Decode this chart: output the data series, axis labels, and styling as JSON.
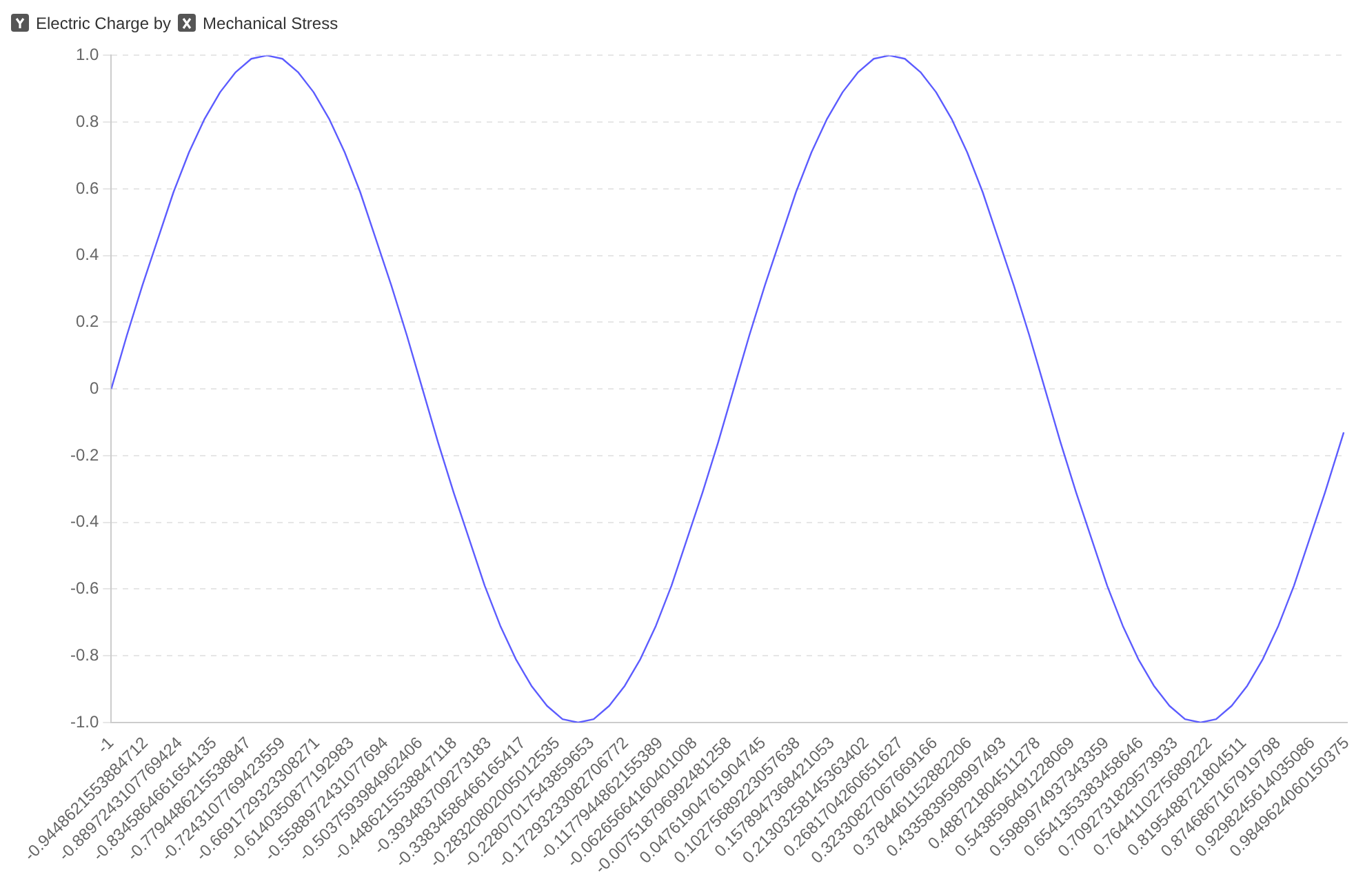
{
  "chart_data": {
    "type": "line",
    "ylabel": "Electric Charge by",
    "xlabel": "Mechanical Stress",
    "x": [
      -1,
      -0.975,
      -0.95,
      -0.925,
      -0.9,
      -0.875,
      -0.85,
      -0.825,
      -0.8,
      -0.775,
      -0.75,
      -0.725,
      -0.7,
      -0.675,
      -0.65,
      -0.625,
      -0.6,
      -0.575,
      -0.55,
      -0.525,
      -0.5,
      -0.475,
      -0.45,
      -0.425,
      -0.4,
      -0.375,
      -0.35,
      -0.325,
      -0.3,
      -0.275,
      -0.25,
      -0.225,
      -0.2,
      -0.175,
      -0.15,
      -0.125,
      -0.1,
      -0.075,
      -0.05,
      -0.025,
      0,
      0.025,
      0.05,
      0.075,
      0.1,
      0.125,
      0.15,
      0.175,
      0.2,
      0.225,
      0.25,
      0.275,
      0.3,
      0.325,
      0.35,
      0.375,
      0.4,
      0.425,
      0.45,
      0.475,
      0.5,
      0.525,
      0.55,
      0.575,
      0.6,
      0.625,
      0.65,
      0.675,
      0.7,
      0.725,
      0.75,
      0.775,
      0.8,
      0.825,
      0.85,
      0.875,
      0.9,
      0.925,
      0.95,
      0.975,
      0.98
    ],
    "series": [
      {
        "color": "#5c5cff",
        "values": [
          0,
          0.16,
          0.31,
          0.45,
          0.59,
          0.71,
          0.81,
          0.89,
          0.95,
          0.99,
          1,
          0.99,
          0.95,
          0.89,
          0.81,
          0.71,
          0.59,
          0.45,
          0.31,
          0.16,
          0,
          -0.16,
          -0.31,
          -0.45,
          -0.59,
          -0.71,
          -0.81,
          -0.89,
          -0.95,
          -0.99,
          -1,
          -0.99,
          -0.95,
          -0.89,
          -0.81,
          -0.71,
          -0.59,
          -0.45,
          -0.31,
          -0.16,
          0,
          0.16,
          0.31,
          0.45,
          0.59,
          0.71,
          0.81,
          0.89,
          0.95,
          0.99,
          1,
          0.99,
          0.95,
          0.89,
          0.81,
          0.71,
          0.59,
          0.45,
          0.31,
          0.16,
          0,
          -0.16,
          -0.31,
          -0.45,
          -0.59,
          -0.71,
          -0.81,
          -0.89,
          -0.95,
          -0.99,
          -1,
          -0.99,
          -0.95,
          -0.89,
          -0.81,
          -0.71,
          -0.59,
          -0.45,
          -0.31,
          -0.16,
          -0.13
        ]
      }
    ],
    "xlim": [
      -1,
      0.9849624060150375
    ],
    "xticks": [
      -1,
      -0.9448621553884712,
      -0.8897243107769424,
      -0.8345864661654135,
      -0.7794486215538847,
      -0.7243107769423559,
      -0.6691729323308271,
      -0.6140350877192983,
      -0.5588972431077694,
      -0.5037593984962406,
      -0.4486215538847118,
      -0.393483709273183,
      -0.33834586466165417,
      -0.28320802005012535,
      -0.22807017543859653,
      -0.17293233082706772,
      -0.1177944862155389,
      -0.06265664160401008,
      -0.007518796992481258,
      0.04761904761904745,
      0.10275689223057638,
      0.1578947368421053,
      0.21303258145363402,
      0.2681704260651627,
      0.32330827067669166,
      0.3784461152882206,
      0.4335839598997493,
      0.488721804511278,
      0.5438596491228069,
      0.5989974937343359,
      0.6541353383458646,
      0.7092731829573933,
      0.7644110275689222,
      0.8195488721804511,
      0.8746867167919798,
      0.9298245614035086,
      0.9849624060150375
    ],
    "ylim": [
      -1,
      1
    ],
    "yticks": [
      {
        "value": -1,
        "label": "-1.0"
      },
      -0.8,
      -0.6,
      -0.4,
      -0.2,
      0,
      0.2,
      0.4,
      0.6,
      0.8,
      {
        "value": 1,
        "label": "1.0"
      }
    ],
    "grid": "y",
    "marker": "none",
    "line_style": "solid",
    "legend": false
  }
}
